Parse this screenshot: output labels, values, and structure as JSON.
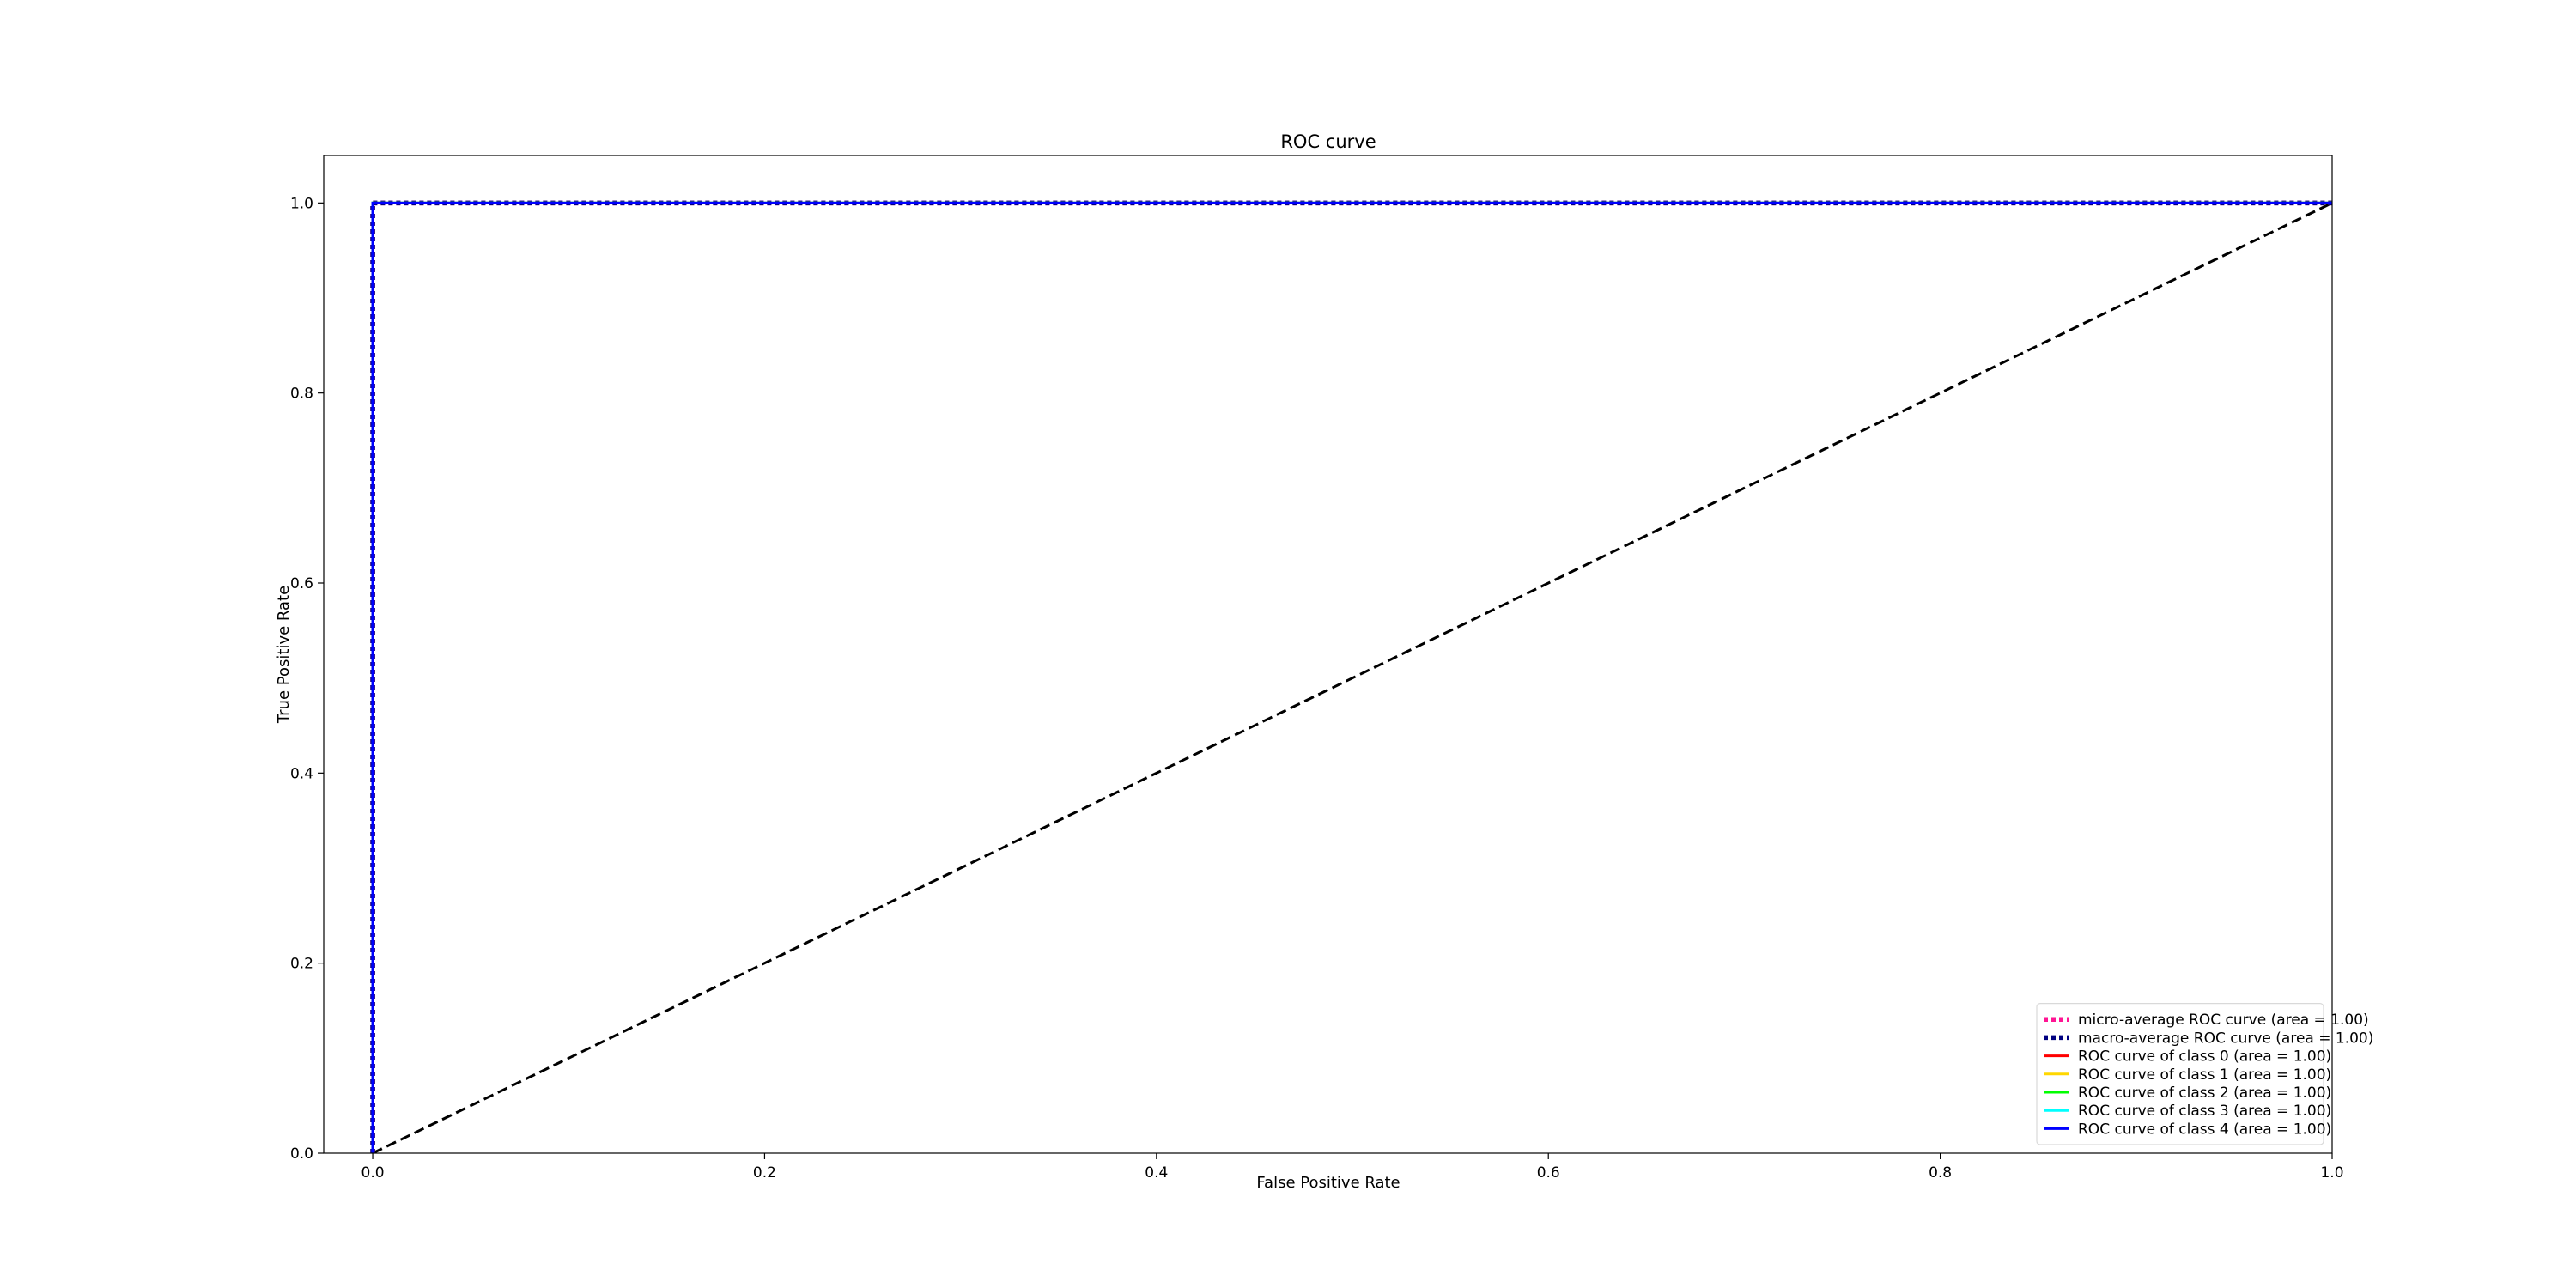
{
  "chart_data": {
    "type": "line",
    "title": "ROC curve",
    "xlabel": "False Positive Rate",
    "ylabel": "True Positive Rate",
    "xlim": [
      -0.025,
      1.0
    ],
    "ylim": [
      0.0,
      1.05
    ],
    "xticks": [
      {
        "value": 0.0,
        "label": "0.0"
      },
      {
        "value": 0.2,
        "label": "0.2"
      },
      {
        "value": 0.4,
        "label": "0.4"
      },
      {
        "value": 0.6,
        "label": "0.6"
      },
      {
        "value": 0.8,
        "label": "0.8"
      },
      {
        "value": 1.0,
        "label": "1.0"
      }
    ],
    "yticks": [
      {
        "value": 0.0,
        "label": "0.0"
      },
      {
        "value": 0.2,
        "label": "0.2"
      },
      {
        "value": 0.4,
        "label": "0.4"
      },
      {
        "value": 0.6,
        "label": "0.6"
      },
      {
        "value": 0.8,
        "label": "0.8"
      },
      {
        "value": 1.0,
        "label": "1.0"
      }
    ],
    "grid": false,
    "legend_position": "bottom-right",
    "series": [
      {
        "name": "micro-average ROC curve (area = 1.00)",
        "color": "#ff1493",
        "style": "dotted",
        "x": [
          0.0,
          0.0,
          1.0
        ],
        "y": [
          0.0,
          1.0,
          1.0
        ]
      },
      {
        "name": "macro-average ROC curve (area = 1.00)",
        "color": "#000080",
        "style": "dotted",
        "x": [
          0.0,
          0.0,
          1.0
        ],
        "y": [
          0.0,
          1.0,
          1.0
        ]
      },
      {
        "name": "ROC curve of class 0 (area = 1.00)",
        "color": "#ff0000",
        "style": "solid",
        "x": [
          0.0,
          0.0,
          1.0
        ],
        "y": [
          0.0,
          1.0,
          1.0
        ]
      },
      {
        "name": "ROC curve of class 1 (area = 1.00)",
        "color": "#ffd700",
        "style": "solid",
        "x": [
          0.0,
          0.0,
          1.0
        ],
        "y": [
          0.0,
          1.0,
          1.0
        ]
      },
      {
        "name": "ROC curve of class 2 (area = 1.00)",
        "color": "#00ff00",
        "style": "solid",
        "x": [
          0.0,
          0.0,
          1.0
        ],
        "y": [
          0.0,
          1.0,
          1.0
        ]
      },
      {
        "name": "ROC curve of class 3 (area = 1.00)",
        "color": "#00ffff",
        "style": "solid",
        "x": [
          0.0,
          0.0,
          1.0
        ],
        "y": [
          0.0,
          1.0,
          1.0
        ]
      },
      {
        "name": "ROC curve of class 4 (area = 1.00)",
        "color": "#0000ff",
        "style": "solid",
        "x": [
          0.0,
          0.0,
          1.0
        ],
        "y": [
          0.0,
          1.0,
          1.0
        ]
      }
    ],
    "reference_line": {
      "color": "#000000",
      "style": "dashed",
      "x": [
        0.0,
        1.0
      ],
      "y": [
        0.0,
        1.0
      ]
    }
  }
}
